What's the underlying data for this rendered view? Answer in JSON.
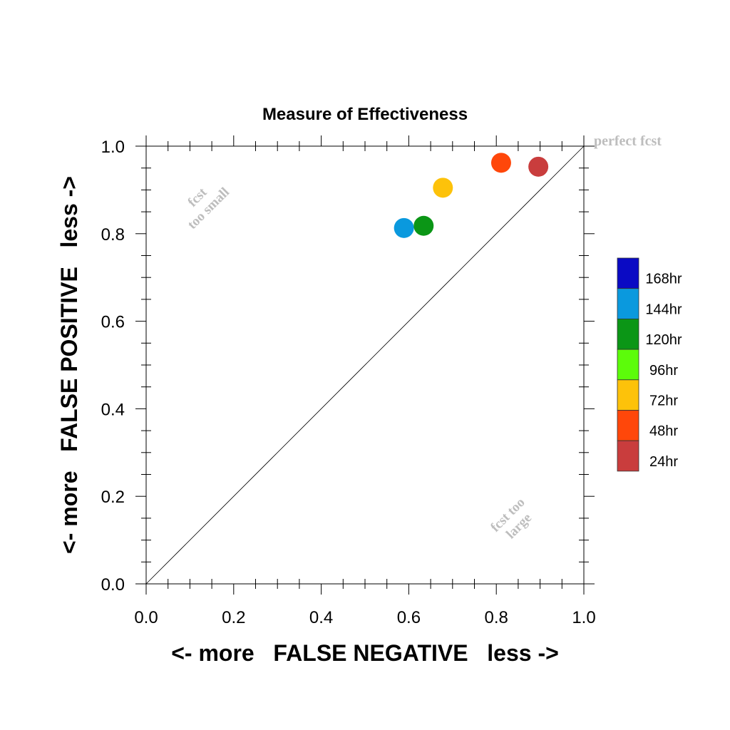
{
  "chart_data": {
    "type": "scatter",
    "title": "Measure of Effectiveness",
    "xlabel": "<- more   FALSE NEGATIVE   less ->",
    "ylabel": "<- more   FALSE POSITIVE   less ->",
    "xlim": [
      0.0,
      1.0
    ],
    "ylim": [
      0.0,
      1.0
    ],
    "x_ticks": [
      "0.0",
      "0.2",
      "0.4",
      "0.6",
      "0.8",
      "1.0"
    ],
    "y_ticks": [
      "0.0",
      "0.2",
      "0.4",
      "0.6",
      "0.8",
      "1.0"
    ],
    "grid": false,
    "reference_line": "diagonal",
    "annotations": {
      "perfect": "perfect fcst",
      "too_small_1": "fcst",
      "too_small_2": "too small",
      "too_large_1": "fcst too",
      "too_large_2": "large"
    },
    "legend_position": "right",
    "legend": [
      {
        "label": "168hr",
        "color": "#0a0ac4"
      },
      {
        "label": "144hr",
        "color": "#0a99de"
      },
      {
        "label": "120hr",
        "color": "#0b9616"
      },
      {
        "label": "96hr",
        "color": "#5cfc0a"
      },
      {
        "label": "72hr",
        "color": "#fdc20a"
      },
      {
        "label": "48hr",
        "color": "#ff470a"
      },
      {
        "label": "24hr",
        "color": "#c93d3d"
      }
    ],
    "series": [
      {
        "name": "144hr",
        "x": 0.589,
        "y": 0.813,
        "color": "#0a99de"
      },
      {
        "name": "120hr",
        "x": 0.634,
        "y": 0.818,
        "color": "#0b9616"
      },
      {
        "name": "72hr",
        "x": 0.678,
        "y": 0.905,
        "color": "#fdc20a"
      },
      {
        "name": "48hr",
        "x": 0.811,
        "y": 0.962,
        "color": "#ff470a"
      },
      {
        "name": "24hr",
        "x": 0.896,
        "y": 0.953,
        "color": "#c93d3d"
      }
    ]
  }
}
